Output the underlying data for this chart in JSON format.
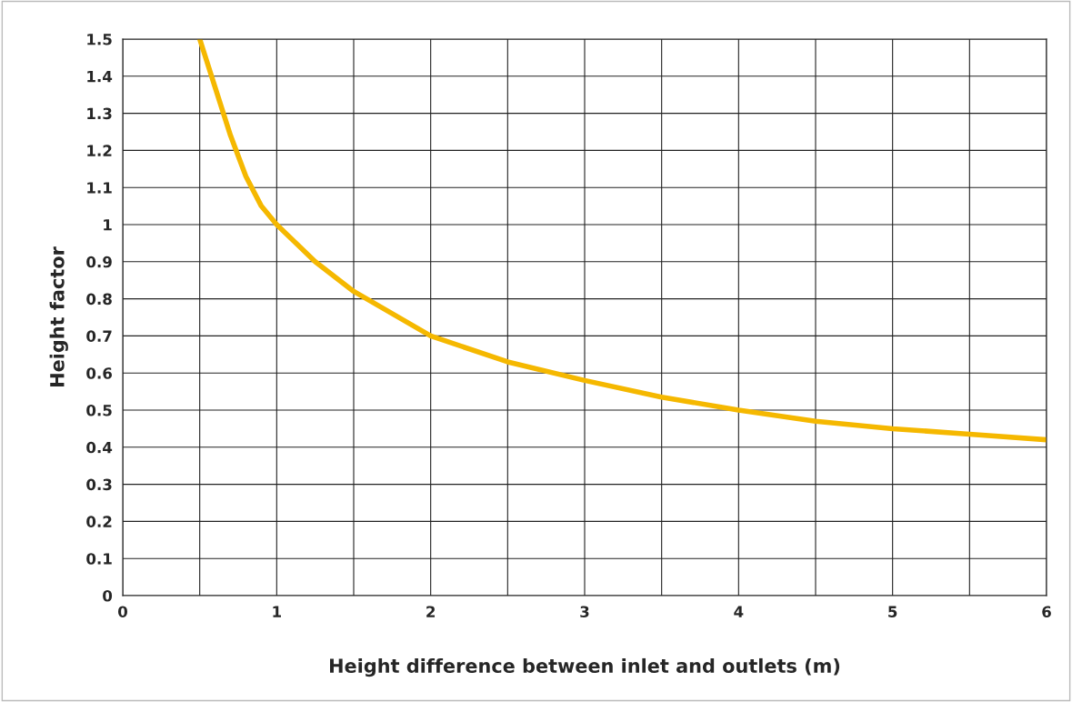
{
  "chart_data": {
    "type": "line",
    "xlabel": "Height difference between inlet and outlets (m)",
    "ylabel": "Height factor",
    "series": [
      {
        "color": "#f5b800",
        "x": [
          0.5,
          0.6,
          0.7,
          0.8,
          0.9,
          1.0,
          1.25,
          1.5,
          2.0,
          2.5,
          3.0,
          3.5,
          4.0,
          4.5,
          5.0,
          5.5,
          6.0
        ],
        "values": [
          1.5,
          1.37,
          1.24,
          1.13,
          1.05,
          1.0,
          0.9,
          0.82,
          0.7,
          0.63,
          0.58,
          0.535,
          0.5,
          0.47,
          0.45,
          0.435,
          0.42
        ]
      }
    ],
    "xlim": [
      0,
      6
    ],
    "xticks": [
      0,
      {
        "value": 0.5,
        "label": null
      },
      1,
      {
        "value": 1.5,
        "label": null
      },
      2,
      {
        "value": 2.5,
        "label": null
      },
      3,
      {
        "value": 3.5,
        "label": null
      },
      4,
      {
        "value": 4.5,
        "label": null
      },
      5,
      {
        "value": 5.5,
        "label": null
      },
      6
    ],
    "ylim": [
      0,
      1.5
    ],
    "yticks": [
      0,
      0.1,
      0.2,
      0.3,
      0.4,
      0.5,
      0.6,
      0.7,
      0.8,
      0.9,
      1,
      1.1,
      1.2,
      1.3,
      1.4,
      1.5
    ],
    "grid": true,
    "marker": "none",
    "line_style": "solid",
    "legend": false
  }
}
